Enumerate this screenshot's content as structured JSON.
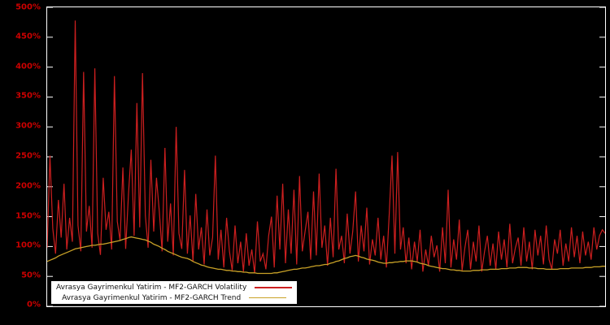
{
  "y_axis": {
    "ticks": [
      "0%",
      "50%",
      "100%",
      "150%",
      "200%",
      "250%",
      "300%",
      "350%",
      "400%",
      "450%",
      "500%"
    ]
  },
  "legend": [
    {
      "label": "Avrasya Gayrimenkul Yatirim - MF2-GARCH Volatility",
      "color": "#cc1f1f"
    },
    {
      "label": "Avrasya Gayrimenkul Yatirim - MF2-GARCH Trend",
      "color": "#c9a227"
    }
  ],
  "chart_data": {
    "type": "line",
    "ylim": [
      0,
      500
    ],
    "ylabel": "",
    "xlabel": "",
    "background": "#000000",
    "grid": false,
    "legend_position": "bottom-left",
    "series": [
      {
        "name": "Avrasya Gayrimenkul Yatirim - MF2-GARCH Volatility",
        "color": "#cc1f1f",
        "values": [
          98,
          252,
          130,
          88,
          178,
          115,
          205,
          95,
          148,
          108,
          478,
          135,
          92,
          392,
          125,
          168,
          98,
          398,
          122,
          86,
          215,
          128,
          158,
          95,
          385,
          142,
          110,
          232,
          96,
          188,
          262,
          118,
          340,
          132,
          390,
          152,
          98,
          245,
          125,
          215,
          158,
          92,
          265,
          108,
          172,
          85,
          300,
          122,
          96,
          228,
          88,
          152,
          75,
          188,
          95,
          132,
          70,
          162,
          85,
          115,
          252,
          78,
          128,
          65,
          148,
          92,
          60,
          135,
          72,
          108,
          58,
          122,
          68,
          95,
          55,
          142,
          75,
          88,
          62,
          118,
          150,
          65,
          185,
          95,
          205,
          72,
          162,
          88,
          195,
          70,
          218,
          92,
          125,
          158,
          78,
          192,
          85,
          222,
          98,
          135,
          68,
          148,
          82,
          230,
          95,
          118,
          72,
          155,
          88,
          125,
          192,
          75,
          135,
          92,
          165,
          70,
          112,
          85,
          148,
          78,
          118,
          65,
          155,
          252,
          88,
          258,
          95,
          132,
          72,
          115,
          62,
          108,
          75,
          128,
          58,
          95,
          68,
          118,
          82,
          102,
          58,
          132,
          72,
          195,
          65,
          112,
          78,
          145,
          60,
          98,
          128,
          62,
          108,
          75,
          135,
          58,
          92,
          118,
          68,
          105,
          62,
          125,
          78,
          112,
          65,
          138,
          72,
          98,
          115,
          68,
          132,
          75,
          108,
          62,
          128,
          85,
          118,
          70,
          135,
          78,
          62,
          112,
          88,
          128,
          68,
          105,
          75,
          132,
          82,
          118,
          72,
          125,
          85,
          108,
          78,
          132,
          95,
          118,
          128,
          122
        ]
      },
      {
        "name": "Avrasya Gayrimenkul Yatirim - MF2-GARCH Trend",
        "color": "#c9a227",
        "values": [
          75,
          77,
          79,
          81,
          84,
          86,
          88,
          90,
          92,
          94,
          96,
          97,
          98,
          99,
          100,
          101,
          102,
          102,
          103,
          104,
          104,
          105,
          106,
          107,
          108,
          109,
          110,
          112,
          113,
          115,
          116,
          115,
          114,
          113,
          112,
          111,
          109,
          107,
          104,
          102,
          100,
          97,
          95,
          92,
          90,
          88,
          86,
          84,
          82,
          81,
          80,
          78,
          75,
          73,
          71,
          69,
          68,
          66,
          65,
          64,
          63,
          62,
          62,
          61,
          60,
          60,
          59,
          59,
          58,
          58,
          57,
          57,
          56,
          56,
          56,
          55,
          55,
          55,
          55,
          55,
          55,
          56,
          56,
          57,
          58,
          59,
          60,
          61,
          62,
          62,
          63,
          64,
          64,
          65,
          66,
          67,
          68,
          68,
          69,
          70,
          70,
          72,
          73,
          75,
          76,
          78,
          80,
          81,
          83,
          84,
          85,
          84,
          82,
          81,
          79,
          78,
          77,
          76,
          74,
          73,
          72,
          72,
          73,
          73,
          74,
          74,
          75,
          75,
          76,
          76,
          76,
          75,
          74,
          72,
          71,
          70,
          68,
          67,
          66,
          65,
          64,
          63,
          63,
          62,
          61,
          61,
          60,
          60,
          59,
          59,
          59,
          59,
          60,
          60,
          60,
          61,
          61,
          61,
          62,
          62,
          62,
          62,
          63,
          63,
          63,
          64,
          64,
          64,
          65,
          65,
          65,
          65,
          64,
          64,
          64,
          63,
          63,
          63,
          62,
          62,
          62,
          62,
          62,
          63,
          63,
          63,
          63,
          64,
          64,
          64,
          64,
          64,
          65,
          65,
          65,
          66,
          66,
          66,
          67,
          67
        ]
      }
    ]
  }
}
